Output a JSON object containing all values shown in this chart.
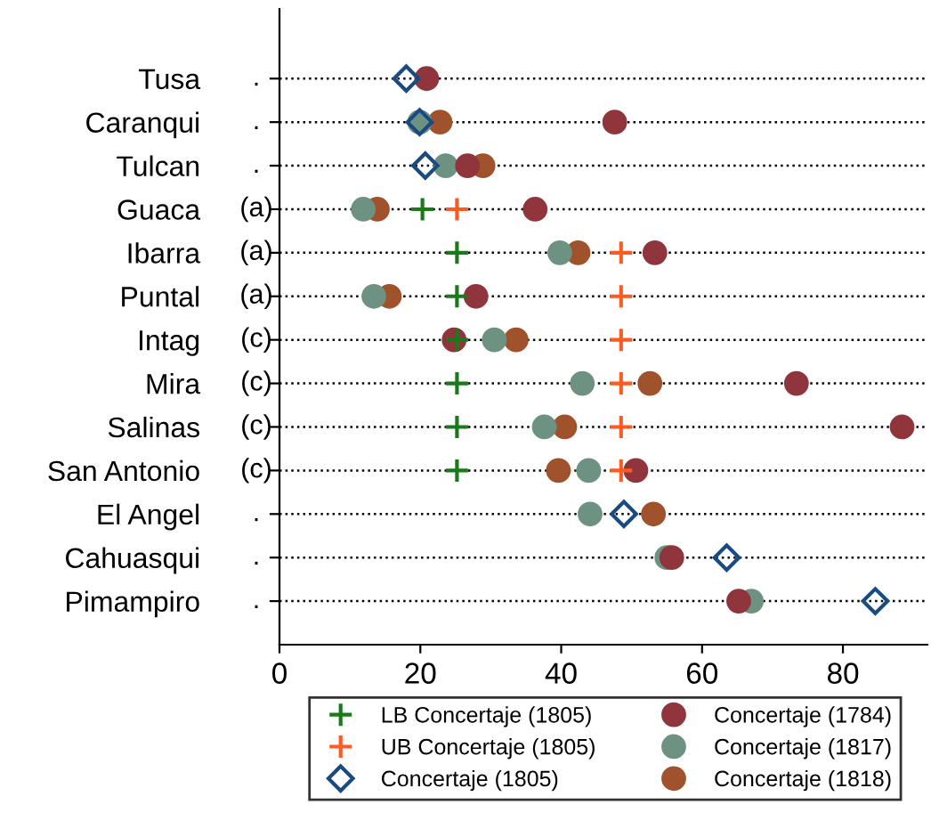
{
  "chart_data": {
    "type": "scatter",
    "orientation": "horizontal",
    "categories": [
      "Tusa",
      "Caranqui",
      "Tulcan",
      "Guaca",
      "Ibarra",
      "Puntal",
      "Intag",
      "Mira",
      "Salinas",
      "San Antonio",
      "El Angel",
      "Cahuasqui",
      "Pimampiro"
    ],
    "y2_categories": [
      ".",
      ".",
      ".",
      "(a)",
      "(a)",
      "(a)",
      "(c)",
      "(c)",
      "(c)",
      "(c)",
      ".",
      ".",
      "."
    ],
    "series": [
      {
        "name": "LB Concertaje (1805)",
        "color": "#1a7a1a",
        "marker": "plus",
        "values": [
          null,
          null,
          null,
          20.3,
          25.2,
          25.2,
          25.2,
          25.2,
          25.2,
          25.2,
          null,
          null,
          null
        ]
      },
      {
        "name": "UB Concertaje (1805)",
        "color": "#ff5a1f",
        "marker": "plus",
        "values": [
          null,
          null,
          null,
          25.2,
          48.5,
          48.5,
          48.5,
          48.5,
          48.5,
          48.5,
          null,
          null,
          null
        ]
      },
      {
        "name": "Concertaje (1805)",
        "color": "#1a4b80",
        "marker": "diamond",
        "values": [
          18.0,
          19.9,
          20.7,
          null,
          null,
          null,
          null,
          null,
          null,
          null,
          48.9,
          63.5,
          84.6
        ]
      },
      {
        "name": "Concertaje (1784)",
        "color": "#90353b",
        "marker": "circle",
        "values": [
          20.9,
          47.6,
          26.7,
          36.3,
          53.3,
          27.9,
          24.8,
          73.4,
          88.4,
          50.6,
          null,
          55.7,
          65.2
        ]
      },
      {
        "name": "Concertaje (1817)",
        "color": "#6e9282",
        "marker": "circle",
        "values": [
          null,
          19.9,
          23.6,
          11.9,
          39.8,
          13.4,
          30.5,
          43.0,
          37.6,
          43.9,
          44.1,
          55.0,
          67.0
        ]
      },
      {
        "name": "Concertaje (1818)",
        "color": "#a0522d",
        "marker": "circle",
        "values": [
          null,
          22.8,
          28.9,
          13.9,
          42.4,
          15.6,
          33.6,
          52.6,
          40.5,
          39.6,
          53.1,
          null,
          null
        ]
      }
    ],
    "xlim": [
      0,
      92
    ],
    "xticks": [
      0,
      20,
      40,
      60,
      80
    ],
    "grid": "y",
    "line_style": "dotted",
    "legend": "bottom"
  }
}
